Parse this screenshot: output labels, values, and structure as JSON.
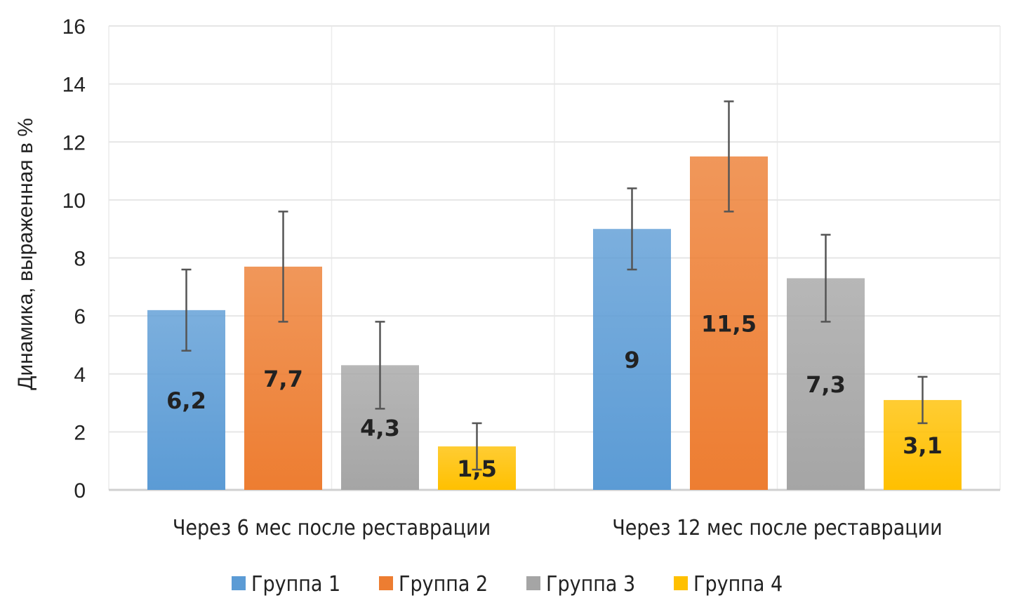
{
  "chart_data": {
    "type": "bar",
    "title": "",
    "xlabel": "",
    "ylabel": "Динамика, выраженная в %",
    "ylim": [
      0,
      16
    ],
    "yticks": [
      0,
      2,
      4,
      6,
      8,
      10,
      12,
      14,
      16
    ],
    "grid": true,
    "legend_position": "bottom",
    "categories": [
      "Через 6 мес после реставрации",
      "Через 12 мес после реставрации"
    ],
    "series": [
      {
        "name": "Группа 1",
        "values": [
          6.2,
          9
        ],
        "labels": [
          "6,2",
          "9"
        ],
        "error": [
          1.4,
          1.4
        ],
        "color": "#5b9bd5"
      },
      {
        "name": "Группа 2",
        "values": [
          7.7,
          11.5
        ],
        "labels": [
          "7,7",
          "11,5"
        ],
        "error": [
          1.9,
          1.9
        ],
        "color": "#ed7d31"
      },
      {
        "name": "Группа 3",
        "values": [
          4.3,
          7.3
        ],
        "labels": [
          "4,3",
          "7,3"
        ],
        "error": [
          1.5,
          1.5
        ],
        "color": "#a5a5a5"
      },
      {
        "name": "Группа 4",
        "values": [
          1.5,
          3.1
        ],
        "labels": [
          "1,5",
          "3,1"
        ],
        "error": [
          0.8,
          0.8
        ],
        "color": "#ffc000"
      }
    ]
  }
}
